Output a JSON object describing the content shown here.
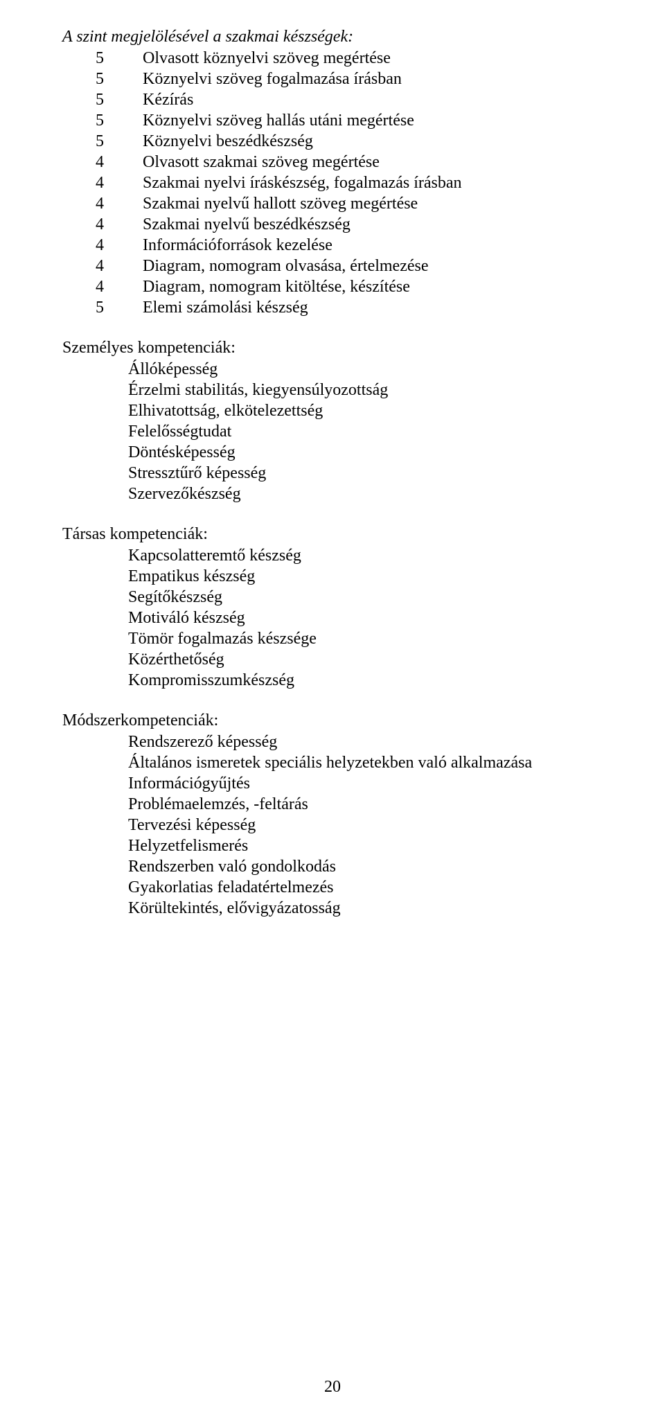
{
  "skills_heading": "A szint megjelölésével a szakmai készségek:",
  "skills": [
    {
      "level": "5",
      "text": "Olvasott köznyelvi szöveg megértése"
    },
    {
      "level": "5",
      "text": "Köznyelvi szöveg fogalmazása írásban"
    },
    {
      "level": "5",
      "text": "Kézírás"
    },
    {
      "level": "5",
      "text": "Köznyelvi szöveg hallás utáni megértése"
    },
    {
      "level": "5",
      "text": "Köznyelvi beszédkészség"
    },
    {
      "level": "4",
      "text": "Olvasott szakmai szöveg megértése"
    },
    {
      "level": "4",
      "text": "Szakmai nyelvi íráskészség, fogalmazás írásban"
    },
    {
      "level": "4",
      "text": "Szakmai nyelvű hallott szöveg megértése"
    },
    {
      "level": "4",
      "text": "Szakmai nyelvű beszédkészség"
    },
    {
      "level": "4",
      "text": "Információforrások kezelése"
    },
    {
      "level": "4",
      "text": "Diagram, nomogram olvasása, értelmezése"
    },
    {
      "level": "4",
      "text": "Diagram, nomogram kitöltése, készítése"
    },
    {
      "level": "5",
      "text": "Elemi számolási készség"
    }
  ],
  "personal_heading": "Személyes kompetenciák:",
  "personal": [
    "Állóképesség",
    "Érzelmi stabilitás, kiegyensúlyozottság",
    "Elhivatottság, elkötelezettség",
    "Felelősségtudat",
    "Döntésképesség",
    "Stressztűrő képesség",
    "Szervezőkészség"
  ],
  "social_heading": "Társas kompetenciák:",
  "social": [
    "Kapcsolatteremtő készség",
    "Empatikus készség",
    "Segítőkészség",
    "Motiváló készség",
    "Tömör fogalmazás készsége",
    "Közérthetőség",
    "Kompromisszumkészség"
  ],
  "method_heading": "Módszerkompetenciák:",
  "method": [
    "Rendszerező képesség",
    "Általános ismeretek speciális helyzetekben való alkalmazása",
    "Információgyűjtés",
    "Problémaelemzés, -feltárás",
    "Tervezési képesség",
    "Helyzetfelismerés",
    "Rendszerben való gondolkodás",
    "Gyakorlatias feladatértelmezés",
    "Körültekintés, elővigyázatosság"
  ],
  "page_number": "20"
}
